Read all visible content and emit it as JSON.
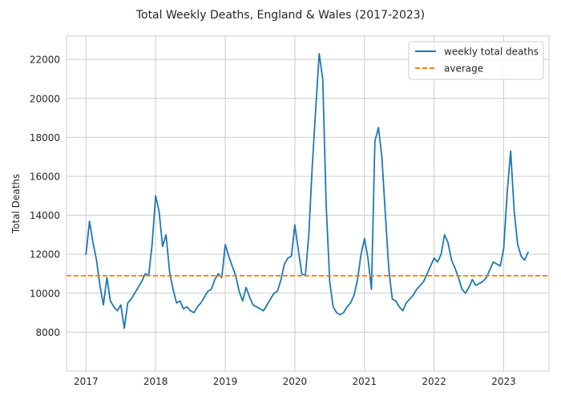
{
  "chart_data": {
    "type": "line",
    "title": "Total Weekly Deaths, England & Wales (2017-2023)",
    "xlabel": "",
    "ylabel": "Total Deaths",
    "x_ticks": [
      "2017",
      "2018",
      "2019",
      "2020",
      "2021",
      "2022",
      "2023"
    ],
    "y_ticks": [
      "8000",
      "10000",
      "12000",
      "14000",
      "16000",
      "18000",
      "20000",
      "22000"
    ],
    "xlim": [
      2016.72,
      2023.65
    ],
    "ylim": [
      6000,
      23200
    ],
    "grid": true,
    "legend_placement": "top-right",
    "colors": {
      "series": "#1f77b4",
      "average": "#ff7f0e",
      "grid": "#cccccc",
      "axis": "#cccccc"
    },
    "series": [
      {
        "name": "weekly total deaths",
        "style": "solid",
        "x": [
          2017.0,
          2017.05,
          2017.1,
          2017.15,
          2017.2,
          2017.25,
          2017.3,
          2017.35,
          2017.4,
          2017.45,
          2017.5,
          2017.55,
          2017.6,
          2017.65,
          2017.7,
          2017.75,
          2017.8,
          2017.85,
          2017.9,
          2017.95,
          2018.0,
          2018.05,
          2018.1,
          2018.15,
          2018.2,
          2018.25,
          2018.3,
          2018.35,
          2018.4,
          2018.45,
          2018.5,
          2018.55,
          2018.6,
          2018.65,
          2018.7,
          2018.75,
          2018.8,
          2018.85,
          2018.9,
          2018.95,
          2019.0,
          2019.05,
          2019.1,
          2019.15,
          2019.2,
          2019.25,
          2019.3,
          2019.35,
          2019.4,
          2019.45,
          2019.5,
          2019.55,
          2019.6,
          2019.65,
          2019.7,
          2019.75,
          2019.8,
          2019.85,
          2019.9,
          2019.95,
          2020.0,
          2020.05,
          2020.1,
          2020.15,
          2020.2,
          2020.25,
          2020.3,
          2020.35,
          2020.4,
          2020.45,
          2020.5,
          2020.55,
          2020.6,
          2020.65,
          2020.7,
          2020.75,
          2020.8,
          2020.85,
          2020.9,
          2020.95,
          2021.0,
          2021.05,
          2021.1,
          2021.15,
          2021.2,
          2021.25,
          2021.3,
          2021.35,
          2021.4,
          2021.45,
          2021.5,
          2021.55,
          2021.6,
          2021.65,
          2021.7,
          2021.75,
          2021.8,
          2021.85,
          2021.9,
          2021.95,
          2022.0,
          2022.05,
          2022.1,
          2022.15,
          2022.2,
          2022.25,
          2022.3,
          2022.35,
          2022.4,
          2022.45,
          2022.5,
          2022.55,
          2022.6,
          2022.65,
          2022.7,
          2022.75,
          2022.8,
          2022.85,
          2022.9,
          2022.95,
          2023.0,
          2023.05,
          2023.1,
          2023.15,
          2023.2,
          2023.25,
          2023.3,
          2023.35
        ],
        "y": [
          12000,
          13700,
          12600,
          11700,
          10400,
          9400,
          10800,
          9600,
          9300,
          9100,
          9400,
          8200,
          9500,
          9700,
          10000,
          10300,
          10600,
          11000,
          10900,
          12500,
          15000,
          14200,
          12400,
          13000,
          11100,
          10200,
          9500,
          9600,
          9200,
          9300,
          9100,
          9000,
          9300,
          9500,
          9800,
          10100,
          10200,
          10700,
          11000,
          10800,
          12500,
          11900,
          11400,
          10900,
          10100,
          9600,
          10300,
          9800,
          9400,
          9300,
          9200,
          9100,
          9400,
          9700,
          10000,
          10100,
          10700,
          11500,
          11800,
          11900,
          13500,
          12200,
          11000,
          10900,
          13000,
          16500,
          19500,
          22300,
          21000,
          14500,
          10600,
          9300,
          9000,
          8900,
          9000,
          9300,
          9500,
          9900,
          10700,
          12000,
          12800,
          11800,
          10200,
          17800,
          18500,
          17000,
          14000,
          11200,
          9700,
          9600,
          9300,
          9100,
          9500,
          9700,
          9900,
          10200,
          10400,
          10600,
          11000,
          11400,
          11800,
          11600,
          12000,
          13000,
          12600,
          11700,
          11300,
          10800,
          10200,
          10000,
          10300,
          10700,
          10400,
          10500,
          10600,
          10800,
          11200,
          11600,
          11500,
          11400,
          12300,
          15200,
          17300,
          14200,
          12500,
          11900,
          11700,
          12100
        ]
      },
      {
        "name": "average",
        "style": "dashed",
        "y": 10900
      }
    ]
  }
}
